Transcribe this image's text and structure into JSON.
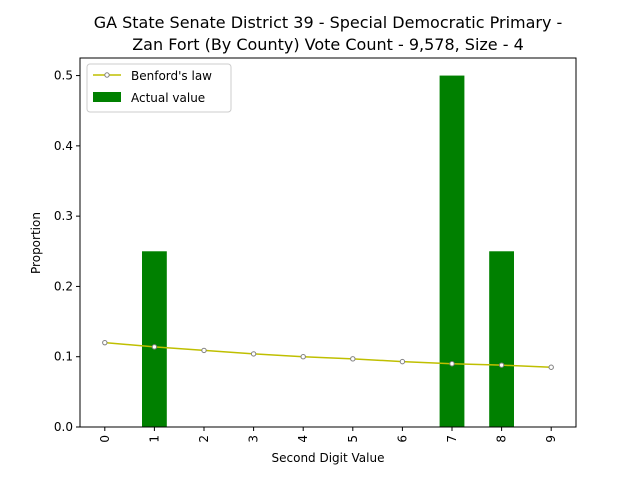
{
  "chart_data": {
    "type": "bar",
    "title_lines": [
      "GA State Senate District 39 - Special Democratic Primary -",
      "Zan Fort (By County) Vote Count - 9,578, Size - 4"
    ],
    "xlabel": "Second Digit Value",
    "ylabel": "Proportion",
    "categories": [
      "0",
      "1",
      "2",
      "3",
      "4",
      "5",
      "6",
      "7",
      "8",
      "9"
    ],
    "x": [
      0,
      1,
      2,
      3,
      4,
      5,
      6,
      7,
      8,
      9
    ],
    "series": [
      {
        "name": "Benford's law",
        "kind": "line",
        "values": [
          0.12,
          0.114,
          0.109,
          0.104,
          0.1,
          0.097,
          0.093,
          0.09,
          0.088,
          0.085
        ]
      },
      {
        "name": "Actual value",
        "kind": "bar",
        "values": [
          0,
          0.25,
          0,
          0,
          0,
          0,
          0,
          0.5,
          0.25,
          0
        ]
      }
    ],
    "xlim": [
      -0.5,
      9.5
    ],
    "ylim": [
      0,
      0.525
    ],
    "yticks": [
      0.0,
      0.1,
      0.2,
      0.3,
      0.4,
      0.5
    ],
    "ytick_labels": [
      "0.0",
      "0.1",
      "0.2",
      "0.3",
      "0.4",
      "0.5"
    ],
    "grid": false,
    "legend_position": "top-left",
    "colors": {
      "bar": "#008000",
      "line": "#bfbf00",
      "marker_edge": "#808080",
      "marker_face": "#ffffff"
    }
  }
}
